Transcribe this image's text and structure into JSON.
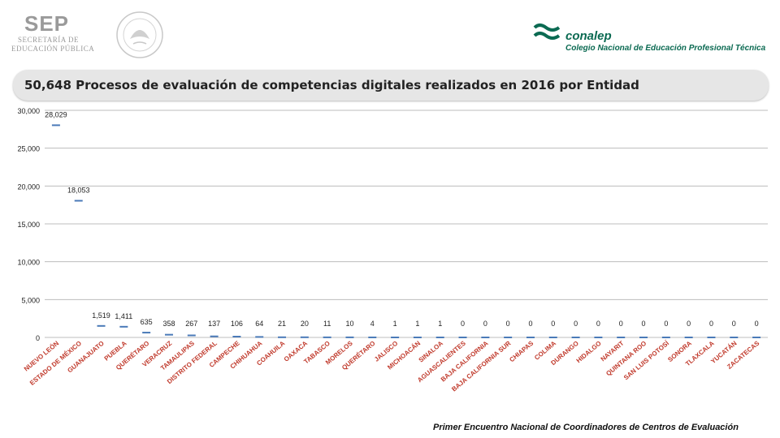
{
  "header": {
    "sep_logo_text": "SEP",
    "sep_line1": "SECRETARÍA DE",
    "sep_line2": "EDUCACIÓN PÚBLICA",
    "conalep_name": "conalep",
    "conalep_full": "Colegio Nacional de Educación Profesional Técnica"
  },
  "title": "50,648 Procesos de evaluación de competencias digitales realizados en 2016 por Entidad",
  "footer": "Primer Encuentro Nacional de Coordinadores de Centros de Evaluación",
  "colors": {
    "series": "#4a7ab8",
    "grid": "#bdbdbd",
    "title_bar": "#e6e6e6",
    "brand": "#0b6a52"
  },
  "chart_data": {
    "type": "line",
    "title": "50,648 Procesos de evaluación de competencias digitales realizados en 2016 por Entidad",
    "ylim": [
      0,
      30000
    ],
    "yticks": [
      0,
      5000,
      10000,
      15000,
      20000,
      25000,
      30000
    ],
    "ytick_labels": [
      "0",
      "5,000",
      "10,000",
      "15,000",
      "20,000",
      "25,000",
      "30,000"
    ],
    "categories": [
      "NUEVO LEÓN",
      "ESTADO DE MÉXICO",
      "GUANAJUATO",
      "PUEBLA",
      "QUERÉTARO",
      "VERACRUZ",
      "TAMAULIPAS",
      "DISTRITO FEDERAL",
      "CAMPECHE",
      "CHIHUAHUA",
      "COAHUILA",
      "OAXACA",
      "TABASCO",
      "MORELOS",
      "QUERÉTARO",
      "JALISCO",
      "MICHOACÁN",
      "SINALOA",
      "AGUASCALIENTES",
      "BAJA CALIFORNIA",
      "BAJA CALIFORNIA SUR",
      "CHIAPAS",
      "COLIMA",
      "DURANGO",
      "HIDALGO",
      "NAYARIT",
      "QUINTANA ROO",
      "SAN LUIS POTOSÍ",
      "SONORA",
      "TLAXCALA",
      "YUCATÁN",
      "ZACATECAS"
    ],
    "values": [
      28029,
      18053,
      1519,
      1411,
      635,
      358,
      267,
      137,
      106,
      64,
      21,
      20,
      11,
      10,
      4,
      1,
      1,
      1,
      0,
      0,
      0,
      0,
      0,
      0,
      0,
      0,
      0,
      0,
      0,
      0,
      0,
      0
    ],
    "value_labels": [
      "28,029",
      "18,053",
      "1,519",
      "1,411",
      "635",
      "358",
      "267",
      "137",
      "106",
      "64",
      "21",
      "20",
      "11",
      "10",
      "4",
      "1",
      "1",
      "1",
      "0",
      "0",
      "0",
      "0",
      "0",
      "0",
      "0",
      "0",
      "0",
      "0",
      "0",
      "0",
      "0",
      "0"
    ]
  }
}
